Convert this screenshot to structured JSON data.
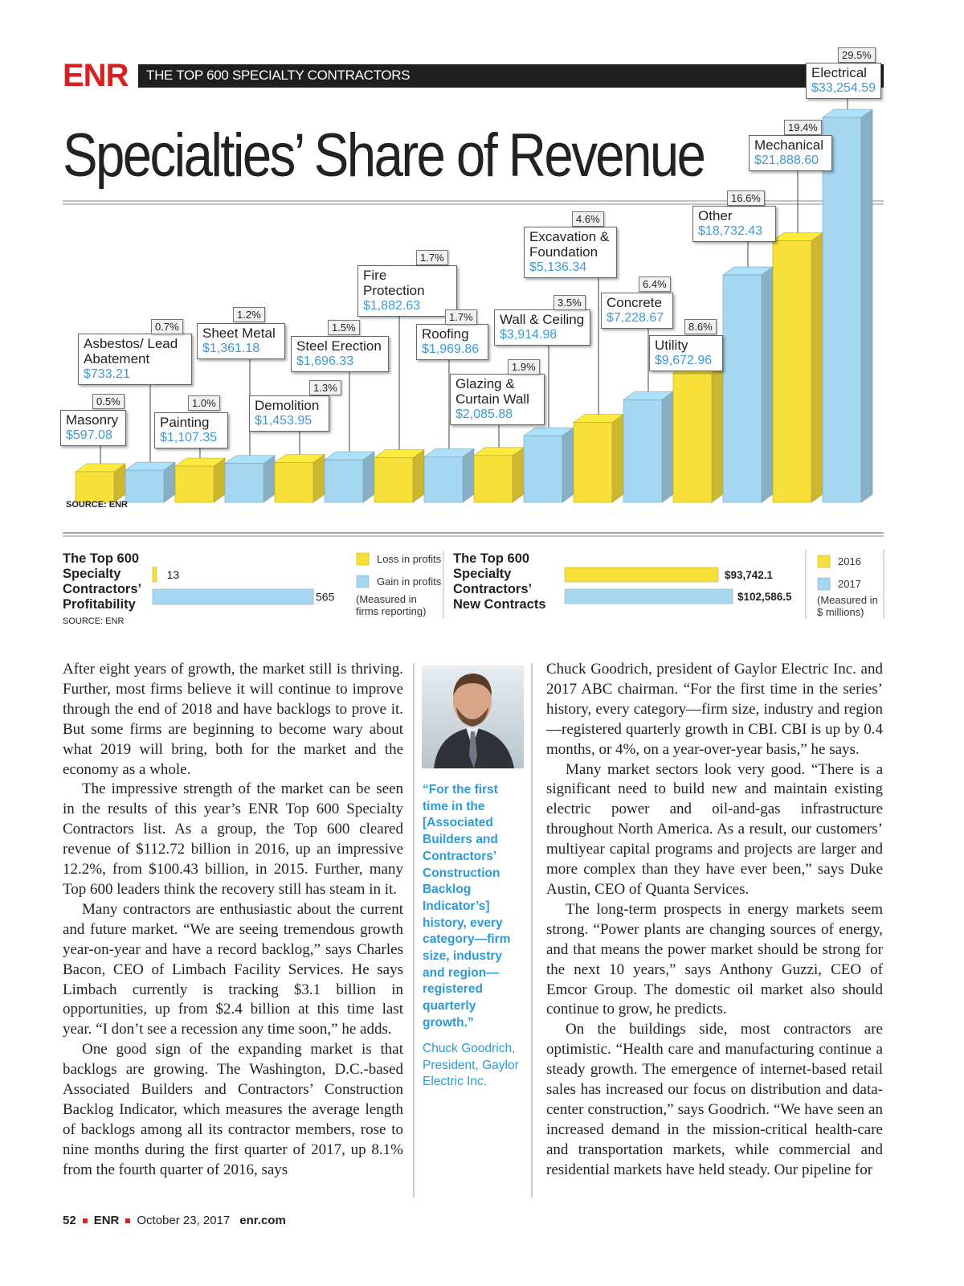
{
  "header": {
    "logo": "ENR",
    "section": "THE TOP 600 SPECIALTY CONTRACTORS"
  },
  "chart_data": [
    {
      "type": "bar3d",
      "title": "Specialties’ Share of Revenue",
      "source": "SOURCE: ENR",
      "categories": [
        "Masonry",
        "Asbestos/ Lead Abatement",
        "Painting",
        "Sheet Metal",
        "Demolition",
        "Steel Erection",
        "Fire Protection",
        "Roofing",
        "Glazing & Curtain Wall",
        "Wall & Ceiling",
        "Excavation & Foundation",
        "Concrete",
        "Utility",
        "Other",
        "Mechanical",
        "Electrical"
      ],
      "values": [
        597.08,
        733.21,
        1107.35,
        1361.18,
        1453.95,
        1696.33,
        1882.63,
        1969.86,
        2085.88,
        3914.98,
        5136.34,
        7228.67,
        9672.96,
        18732.43,
        21888.6,
        33254.59
      ],
      "value_labels": [
        "$597.08",
        "$733.21",
        "$1,107.35",
        "$1,361.18",
        "$1,453.95",
        "$1,696.33",
        "$1,882.63",
        "$1,969.86",
        "$2,085.88",
        "$3,914.98",
        "$5,136.34",
        "$7,228.67",
        "$9,672.96",
        "$18,732.43",
        "$21,888.60",
        "$33,254.59"
      ],
      "share_labels": [
        "0.5%",
        "0.7%",
        "1.0%",
        "1.2%",
        "1.3%",
        "1.5%",
        "1.7%",
        "1.7%",
        "1.9%",
        "3.5%",
        "4.6%",
        "6.4%",
        "8.6%",
        "16.6%",
        "19.4%",
        "29.5%"
      ],
      "colors": [
        "#f7e03a",
        "#a6d7f0",
        "#f7e03a",
        "#a6d7f0",
        "#f7e03a",
        "#a6d7f0",
        "#f7e03a",
        "#a6d7f0",
        "#f7e03a",
        "#a6d7f0",
        "#f7e03a",
        "#a6d7f0",
        "#f7e03a",
        "#a6d7f0",
        "#f7e03a",
        "#a6d7f0"
      ]
    },
    {
      "type": "hbar",
      "title": "The Top 600 Specialty Contractors’ Profitability",
      "source": "SOURCE: ENR",
      "series": [
        {
          "name": "Loss in profits",
          "color": "#f7e03a",
          "values": [
            13
          ]
        },
        {
          "name": "Gain in profits",
          "color": "#a6d7f0",
          "values": [
            565
          ]
        }
      ],
      "note": "(Measured in firms reporting)"
    },
    {
      "type": "hbar",
      "title": "The Top 600 Specialty Contractors’ New Contracts",
      "series": [
        {
          "name": "2016",
          "color": "#f7e03a",
          "values": [
            93742.1
          ],
          "value_labels": [
            "$93,742.1"
          ]
        },
        {
          "name": "2017",
          "color": "#a6d7f0",
          "values": [
            102586.5
          ],
          "value_labels": [
            "$102,586.5"
          ]
        }
      ],
      "note": "(Measured in $ millions)"
    }
  ],
  "body": {
    "col1": [
      "After eight years of growth, the market still is thriving. Further, most firms believe it will continue to improve through the end of 2018 and have backlogs to prove it. But some firms are beginning to become wary about what 2019 will bring, both for the market and the economy as a whole.",
      "The impressive strength of the market can be seen in the results of this year’s ENR Top 600 Specialty Contractors list. As a group, the Top 600 cleared revenue of $112.72 billion in 2016, up an impressive 12.2%, from $100.43 billion, in 2015. Further, many Top 600 leaders think the recovery still has steam in it.",
      "Many contractors are enthusiastic about the current and future market. “We are seeing tremendous growth year-on-year and have a record backlog,” says Charles Bacon, CEO of Limbach Facility Services. He says Limbach currently is tracking $3.1 billion in opportunities, up from $2.4 billion at this time last year. “I don’t see a recession any time soon,” he adds.",
      "One good sign of the expanding market is that backlogs are growing. The Washington, D.C.-based Associated Builders and Contractors’ Construction Backlog Indicator, which measures the average length of backlogs among all its contractor members, rose to nine months during the first quarter of 2017, up 8.1% from the fourth quarter of 2016, says"
    ],
    "col3": [
      "Chuck Goodrich, president of Gaylor Electric Inc. and 2017 ABC chairman. “For the first time in the series’ history, every category—firm size, industry and region—registered quarterly growth in CBI. CBI is up by 0.4 months, or 4%, on a year-over-year basis,” he says.",
      "Many market sectors look very good. “There is a significant need to build new and maintain existing electric power and oil-and-gas infrastructure throughout North America. As a result, our customers’ multiyear capital programs and projects are larger and more complex than they have ever been,” says Duke Austin, CEO of Quanta Services.",
      "The long-term prospects in energy markets seem strong. “Power plants are changing sources of energy, and that means the power market should be strong for the next 10 years,” says Anthony Guzzi, CEO of Emcor Group. The domestic oil market also should continue to grow, he predicts.",
      "On the buildings side, most contractors are optimistic. “Health care and manufacturing continue a steady growth. The emergence of internet-based retail sales has increased our focus on distribution and data-center construction,” says Goodrich. “We have seen an increased demand in the mission-critical health-care and transportation markets, while commercial and residential markets have held steady. Our pipeline for"
    ],
    "quote": "“For the first time in the [Associated Builders and Contractors’ Construction Backlog Indicator’s] history, every category—firm size, industry and region—registered quarterly growth.”",
    "attribution": "Chuck Goodrich, President, Gaylor Electric Inc."
  },
  "footer": {
    "page": "52",
    "brand": "ENR",
    "date": "October 23, 2017",
    "site": "enr.com"
  }
}
